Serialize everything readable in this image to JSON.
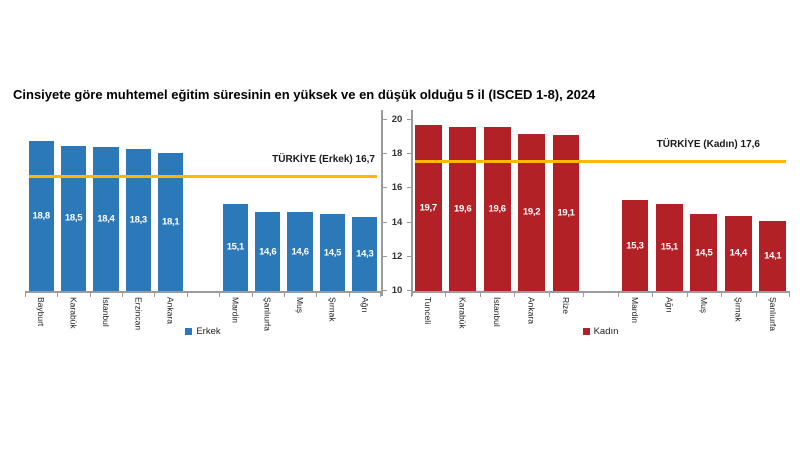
{
  "title": "Cinsiyete göre muhtemel eğitim süresinin en yüksek ve en düşük olduğu 5 il (ISCED 1-8), 2024",
  "colors": {
    "male_bar": "#2C79BA",
    "female_bar": "#B22126",
    "reference_line": "#FFB900",
    "axis": "#9b9b9b"
  },
  "y_axis": {
    "ticks": [
      "20",
      "18",
      "16",
      "14",
      "12",
      "10"
    ],
    "min": 10,
    "max": 20
  },
  "chart_data": [
    {
      "type": "bar",
      "name": "erkek",
      "legend": "Erkek",
      "color": "#2C79BA",
      "ylim": [
        10,
        20
      ],
      "grid": false,
      "categories": [
        "Bayburt",
        "Karabük",
        "İstanbul",
        "Erzincan",
        "Ankara",
        "",
        "Mardin",
        "Şanlıurfa",
        "Muş",
        "Şırnak",
        "Ağrı"
      ],
      "values": [
        18.8,
        18.5,
        18.4,
        18.3,
        18.1,
        null,
        15.1,
        14.6,
        14.6,
        14.5,
        14.3
      ],
      "value_labels": [
        "18,8",
        "18,5",
        "18,4",
        "18,3",
        "18,1",
        "",
        "15,1",
        "14,6",
        "14,6",
        "14,5",
        "14,3"
      ],
      "reference_line": {
        "value": 16.7,
        "label": "TÜRKİYE (Erkek) 16,7"
      }
    },
    {
      "type": "bar",
      "name": "kadin",
      "legend": "Kadın",
      "color": "#B22126",
      "ylim": [
        10,
        20
      ],
      "grid": false,
      "categories": [
        "Tunceli",
        "Karabük",
        "İstanbul",
        "Ankara",
        "Rize",
        "",
        "Mardin",
        "Ağrı",
        "Muş",
        "Şırnak",
        "Şanlıurfa"
      ],
      "values": [
        19.7,
        19.6,
        19.6,
        19.2,
        19.1,
        null,
        15.3,
        15.1,
        14.5,
        14.4,
        14.1
      ],
      "value_labels": [
        "19,7",
        "19,6",
        "19,6",
        "19,2",
        "19,1",
        "",
        "15,3",
        "15,1",
        "14,5",
        "14,4",
        "14,1"
      ],
      "reference_line": {
        "value": 17.6,
        "label": "TÜRKİYE (Kadın) 17,6"
      }
    }
  ]
}
